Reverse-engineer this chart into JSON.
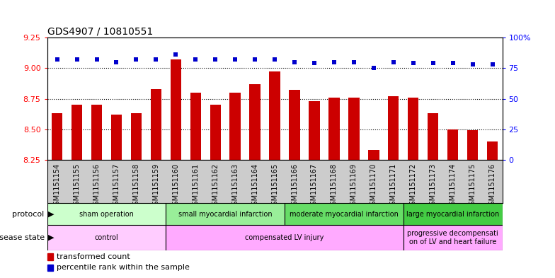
{
  "title": "GDS4907 / 10810551",
  "samples": [
    "GSM1151154",
    "GSM1151155",
    "GSM1151156",
    "GSM1151157",
    "GSM1151158",
    "GSM1151159",
    "GSM1151160",
    "GSM1151161",
    "GSM1151162",
    "GSM1151163",
    "GSM1151164",
    "GSM1151165",
    "GSM1151166",
    "GSM1151167",
    "GSM1151168",
    "GSM1151169",
    "GSM1151170",
    "GSM1151171",
    "GSM1151172",
    "GSM1151173",
    "GSM1151174",
    "GSM1151175",
    "GSM1151176"
  ],
  "bar_values": [
    8.63,
    8.7,
    8.7,
    8.62,
    8.63,
    8.83,
    9.07,
    8.8,
    8.7,
    8.8,
    8.87,
    8.97,
    8.82,
    8.73,
    8.76,
    8.76,
    8.33,
    8.77,
    8.76,
    8.63,
    8.5,
    8.49,
    8.4
  ],
  "percentile_values": [
    82,
    82,
    82,
    80,
    82,
    82,
    86,
    82,
    82,
    82,
    82,
    82,
    80,
    79,
    80,
    80,
    75,
    80,
    79,
    79,
    79,
    78,
    78
  ],
  "bar_color": "#cc0000",
  "dot_color": "#0000cc",
  "ylim_left": [
    8.25,
    9.25
  ],
  "ylim_right": [
    0,
    100
  ],
  "yticks_left": [
    8.25,
    8.5,
    8.75,
    9.0,
    9.25
  ],
  "yticks_right": [
    0,
    25,
    50,
    75,
    100
  ],
  "hlines": [
    8.5,
    8.75,
    9.0
  ],
  "protocol_groups": [
    {
      "label": "sham operation",
      "start": 0,
      "end": 5,
      "color": "#ccffcc"
    },
    {
      "label": "small myocardial infarction",
      "start": 6,
      "end": 11,
      "color": "#99ee99"
    },
    {
      "label": "moderate myocardial infarction",
      "start": 12,
      "end": 17,
      "color": "#66dd66"
    },
    {
      "label": "large myocardial infarction",
      "start": 18,
      "end": 22,
      "color": "#44cc44"
    }
  ],
  "disease_groups": [
    {
      "label": "control",
      "start": 0,
      "end": 5,
      "color": "#ffccff"
    },
    {
      "label": "compensated LV injury",
      "start": 6,
      "end": 17,
      "color": "#ffaaff"
    },
    {
      "label": "progressive decompensati\non of LV and heart failure",
      "start": 18,
      "end": 22,
      "color": "#ffaaff"
    }
  ],
  "legend_bar_label": "transformed count",
  "legend_dot_label": "percentile rank within the sample",
  "xtick_bg_color": "#cccccc",
  "label_fontsize": 7,
  "right_ytick_labels": [
    "0",
    "25",
    "50",
    "75",
    "100%"
  ]
}
